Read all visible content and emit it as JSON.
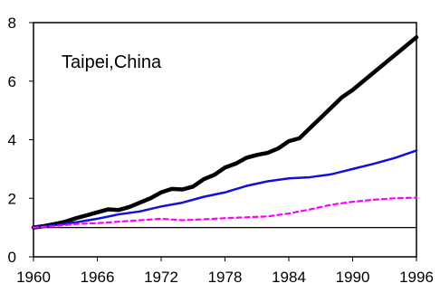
{
  "chart_data": {
    "type": "line",
    "title": "",
    "annotation": "Taipei,China",
    "xlabel": "",
    "ylabel": "",
    "xlim": [
      1960,
      1996
    ],
    "ylim": [
      0,
      8
    ],
    "x_ticks": [
      1960,
      1966,
      1972,
      1978,
      1984,
      1990,
      1996
    ],
    "y_ticks": [
      0,
      2,
      4,
      6,
      8
    ],
    "reference_line": 1,
    "grid": false,
    "legend": "none",
    "series": [
      {
        "color": "#000000",
        "style": "solid-thick",
        "x": [
          1960,
          1961,
          1962,
          1963,
          1964,
          1965,
          1966,
          1967,
          1968,
          1969,
          1970,
          1971,
          1972,
          1973,
          1974,
          1975,
          1976,
          1977,
          1978,
          1979,
          1980,
          1981,
          1982,
          1983,
          1984,
          1985,
          1986,
          1987,
          1988,
          1989,
          1990,
          1991,
          1992,
          1993,
          1994,
          1995,
          1996
        ],
        "values": [
          1.0,
          1.05,
          1.12,
          1.2,
          1.32,
          1.42,
          1.52,
          1.62,
          1.6,
          1.7,
          1.85,
          2.0,
          2.2,
          2.32,
          2.3,
          2.4,
          2.65,
          2.8,
          3.05,
          3.18,
          3.38,
          3.48,
          3.55,
          3.7,
          3.95,
          4.05,
          4.4,
          4.75,
          5.1,
          5.45,
          5.7,
          6.0,
          6.3,
          6.6,
          6.9,
          7.2,
          7.5
        ]
      },
      {
        "color": "#1010d8",
        "style": "solid",
        "x": [
          1960,
          1962,
          1964,
          1966,
          1968,
          1970,
          1972,
          1974,
          1976,
          1978,
          1980,
          1982,
          1984,
          1986,
          1988,
          1990,
          1992,
          1994,
          1996
        ],
        "values": [
          1.0,
          1.08,
          1.18,
          1.3,
          1.45,
          1.55,
          1.72,
          1.85,
          2.05,
          2.2,
          2.42,
          2.58,
          2.68,
          2.72,
          2.82,
          3.0,
          3.18,
          3.38,
          3.63
        ]
      },
      {
        "color": "#ff00ff",
        "style": "dashed",
        "x": [
          1960,
          1962,
          1964,
          1966,
          1968,
          1970,
          1972,
          1974,
          1976,
          1978,
          1980,
          1982,
          1984,
          1986,
          1988,
          1990,
          1992,
          1994,
          1996
        ],
        "values": [
          1.0,
          1.05,
          1.12,
          1.15,
          1.2,
          1.25,
          1.3,
          1.25,
          1.28,
          1.32,
          1.35,
          1.38,
          1.48,
          1.62,
          1.78,
          1.88,
          1.95,
          2.0,
          2.02
        ]
      }
    ]
  }
}
